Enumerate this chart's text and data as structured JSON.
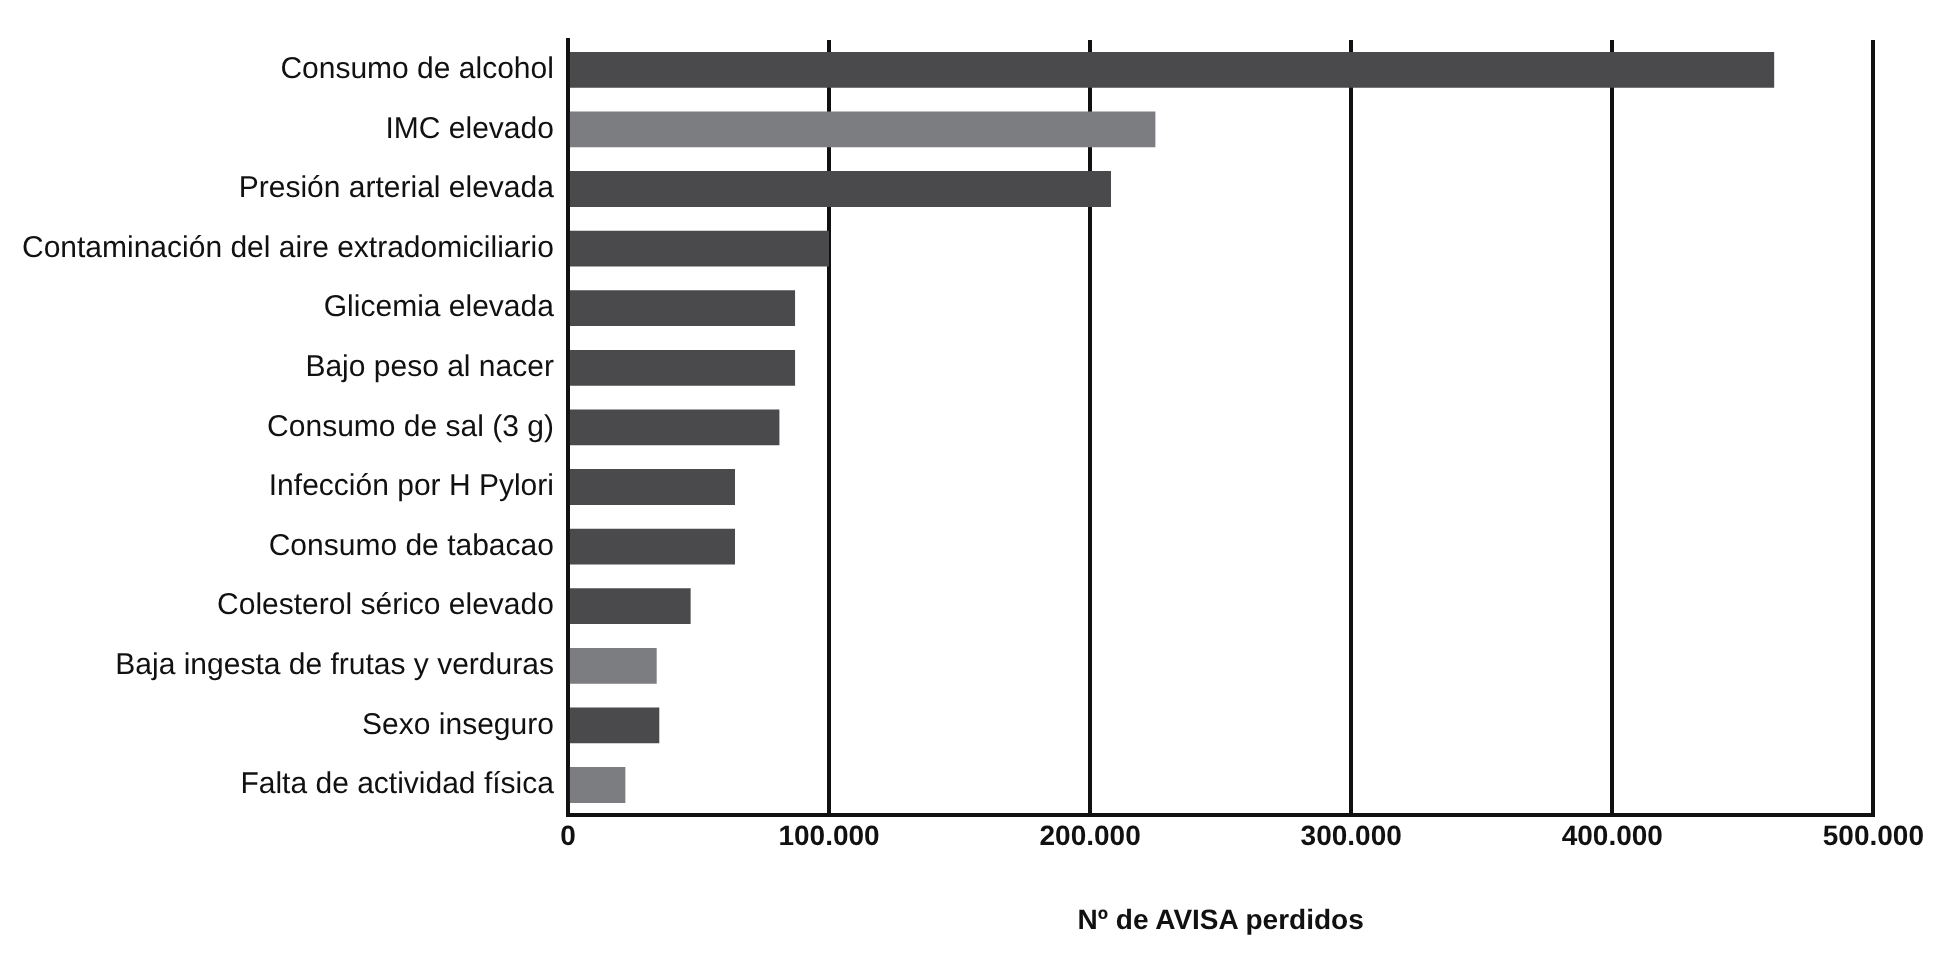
{
  "chart_data": {
    "type": "bar",
    "orientation": "horizontal",
    "xlabel": "Nº de AVISA perdidos",
    "categories": [
      "Consumo de alcohol",
      "IMC elevado",
      "Presión arterial elevada",
      "Contaminación del aire extradomiciliario",
      "Glicemia elevada",
      "Bajo peso al nacer",
      "Consumo de sal (3 g)",
      "Infección por H Pylori",
      "Consumo de tabacao",
      "Colesterol sérico elevado",
      "Baja ingesta de frutas y verduras",
      "Sexo inseguro",
      "Falta de actividad física"
    ],
    "values": [
      462000,
      225000,
      208000,
      100000,
      87000,
      87000,
      81000,
      64000,
      64000,
      47000,
      34000,
      35000,
      22000
    ],
    "colors": [
      "#4a4a4c",
      "#7c7d80",
      "#4a4a4c",
      "#4a4a4c",
      "#4a4a4c",
      "#4a4a4c",
      "#4a4a4c",
      "#4a4a4c",
      "#4a4a4c",
      "#4a4a4c",
      "#7c7d80",
      "#4a4a4c",
      "#7c7d80"
    ],
    "xlim": [
      0,
      500000
    ],
    "xticks": [
      0,
      {
        "value": 100000,
        "label": "100.000"
      },
      {
        "value": 200000,
        "label": "200.000"
      },
      {
        "value": 300000,
        "label": "300.000"
      },
      {
        "value": 400000,
        "label": "400.000"
      },
      {
        "value": 500000,
        "label": "500.000"
      }
    ],
    "grid": "x",
    "legend": false
  }
}
